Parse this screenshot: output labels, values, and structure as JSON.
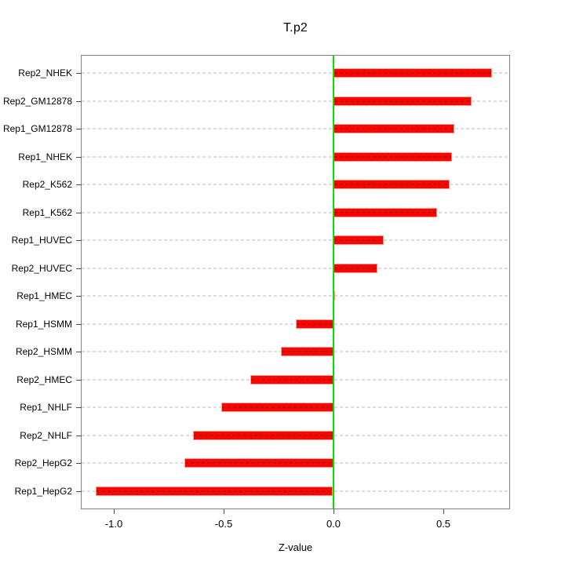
{
  "title": "T.p2",
  "chart_data": {
    "type": "bar",
    "orientation": "horizontal",
    "title": "T.p2",
    "xlabel": "Z-value",
    "ylabel": "",
    "categories": [
      "Rep2_NHEK",
      "Rep2_GM12878",
      "Rep1_GM12878",
      "Rep1_NHEK",
      "Rep2_K562",
      "Rep1_K562",
      "Rep1_HUVEC",
      "Rep2_HUVEC",
      "Rep1_HMEC",
      "Rep1_HSMM",
      "Rep2_HSMM",
      "Rep2_HMEC",
      "Rep1_NHLF",
      "Rep2_NHLF",
      "Rep2_HepG2",
      "Rep1_HepG2"
    ],
    "values": [
      0.72,
      0.63,
      0.55,
      0.54,
      0.53,
      0.47,
      0.23,
      0.2,
      0.005,
      -0.17,
      -0.24,
      -0.38,
      -0.51,
      -0.64,
      -0.68,
      -1.08
    ],
    "xlim": [
      -1.146,
      0.8
    ],
    "x_ticks": [
      -1.0,
      -0.5,
      0.0,
      0.5
    ],
    "x_tick_labels": [
      "-1.0",
      "-0.5",
      "0.0",
      "0.5"
    ],
    "grid": "dashed horizontal line per category",
    "legend": "none",
    "zero_reference_line": 0.0,
    "colors": {
      "bar": "#fb0500",
      "bar_border": "#ff9b94",
      "bar_dash": "#b51500",
      "zero_line": "#00e405",
      "grid": "#dcdcdc",
      "box": "#828282",
      "axis_tick": "#4d4d4d",
      "text": "#000000",
      "background": "#ffffff"
    }
  }
}
